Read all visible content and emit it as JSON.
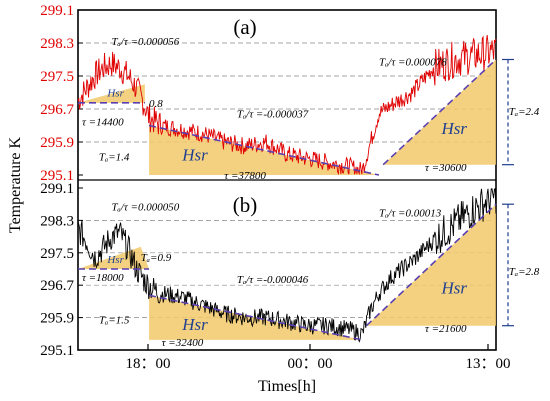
{
  "chart_data": {
    "type": "line",
    "ylabel": "Temperature K",
    "xlabel": "Times[h]",
    "xticks": [
      "18：00",
      "00：00",
      "13：00"
    ],
    "colors": {
      "top_series": "#e00000",
      "bottom_series": "#000000",
      "fill": "#f2c96a",
      "accent": "#1f3f8f"
    },
    "panels": [
      {
        "label": "(a)",
        "yticks": [
          "299.1",
          "298.3",
          "297.5",
          "296.7",
          "295.9",
          "295.1"
        ],
        "ylim": [
          295.1,
          299.1
        ],
        "yticks_color": "#e00000",
        "series": {
          "x": [
            0,
            0.02,
            0.04,
            0.06,
            0.08,
            0.1,
            0.12,
            0.14,
            0.155,
            0.17,
            0.2,
            0.25,
            0.3,
            0.35,
            0.4,
            0.45,
            0.5,
            0.55,
            0.6,
            0.65,
            0.68,
            0.7,
            0.72,
            0.75,
            0.8,
            0.85,
            0.9,
            0.95,
            1.0
          ],
          "y": [
            296.9,
            297.2,
            297.5,
            297.7,
            297.8,
            297.7,
            297.5,
            297.2,
            296.9,
            296.5,
            296.3,
            296.2,
            296.1,
            295.9,
            295.8,
            295.9,
            295.6,
            295.5,
            295.4,
            295.3,
            295.2,
            295.9,
            296.6,
            296.8,
            297.1,
            297.7,
            297.9,
            298.0,
            298.1
          ]
        },
        "annotations": {
          "rate1": "Tₐ/τ =0.000056",
          "amp1": "0.8",
          "tau1": "τ =14400",
          "rate2": "Tₐ/τ =-0.000037",
          "amp2": "Tₐ=1.4",
          "tau2": "τ =37800",
          "rate3": "Tₐ/τ =0.000078",
          "amp3": "Tₐ=2.4",
          "tau3": "τ =30600",
          "hsr": "Hsr"
        }
      },
      {
        "label": "(b)",
        "yticks": [
          "299.1",
          "298.3",
          "297.5",
          "296.7",
          "295.9",
          "295.1"
        ],
        "ylim": [
          295.1,
          299.1
        ],
        "yticks_color": "#000000",
        "series": {
          "x": [
            0,
            0.02,
            0.04,
            0.06,
            0.08,
            0.1,
            0.12,
            0.14,
            0.16,
            0.18,
            0.2,
            0.25,
            0.3,
            0.35,
            0.4,
            0.45,
            0.5,
            0.55,
            0.6,
            0.65,
            0.68,
            0.7,
            0.72,
            0.75,
            0.8,
            0.85,
            0.9,
            0.95,
            1.0
          ],
          "y": [
            298.1,
            297.8,
            297.4,
            297.6,
            297.9,
            298.0,
            297.6,
            297.1,
            296.8,
            296.6,
            296.5,
            296.4,
            296.2,
            296.0,
            295.9,
            295.9,
            295.8,
            295.7,
            295.7,
            295.6,
            295.5,
            296.1,
            296.5,
            296.9,
            297.3,
            297.8,
            298.2,
            298.6,
            298.9
          ]
        },
        "annotations": {
          "rate1": "Tₐ/τ =0.000050",
          "amp1": "Tₐ=0.9",
          "tau1": "τ =18000",
          "rate2": "Tₐ/τ =-0.000046",
          "amp2": "Tₐ=1.5",
          "tau2": "τ =32400",
          "rate3": "Tₐ/τ =0.00013",
          "amp3": "Tₐ=2.8",
          "tau3": "τ =21600",
          "hsr": "Hsr"
        }
      }
    ]
  }
}
